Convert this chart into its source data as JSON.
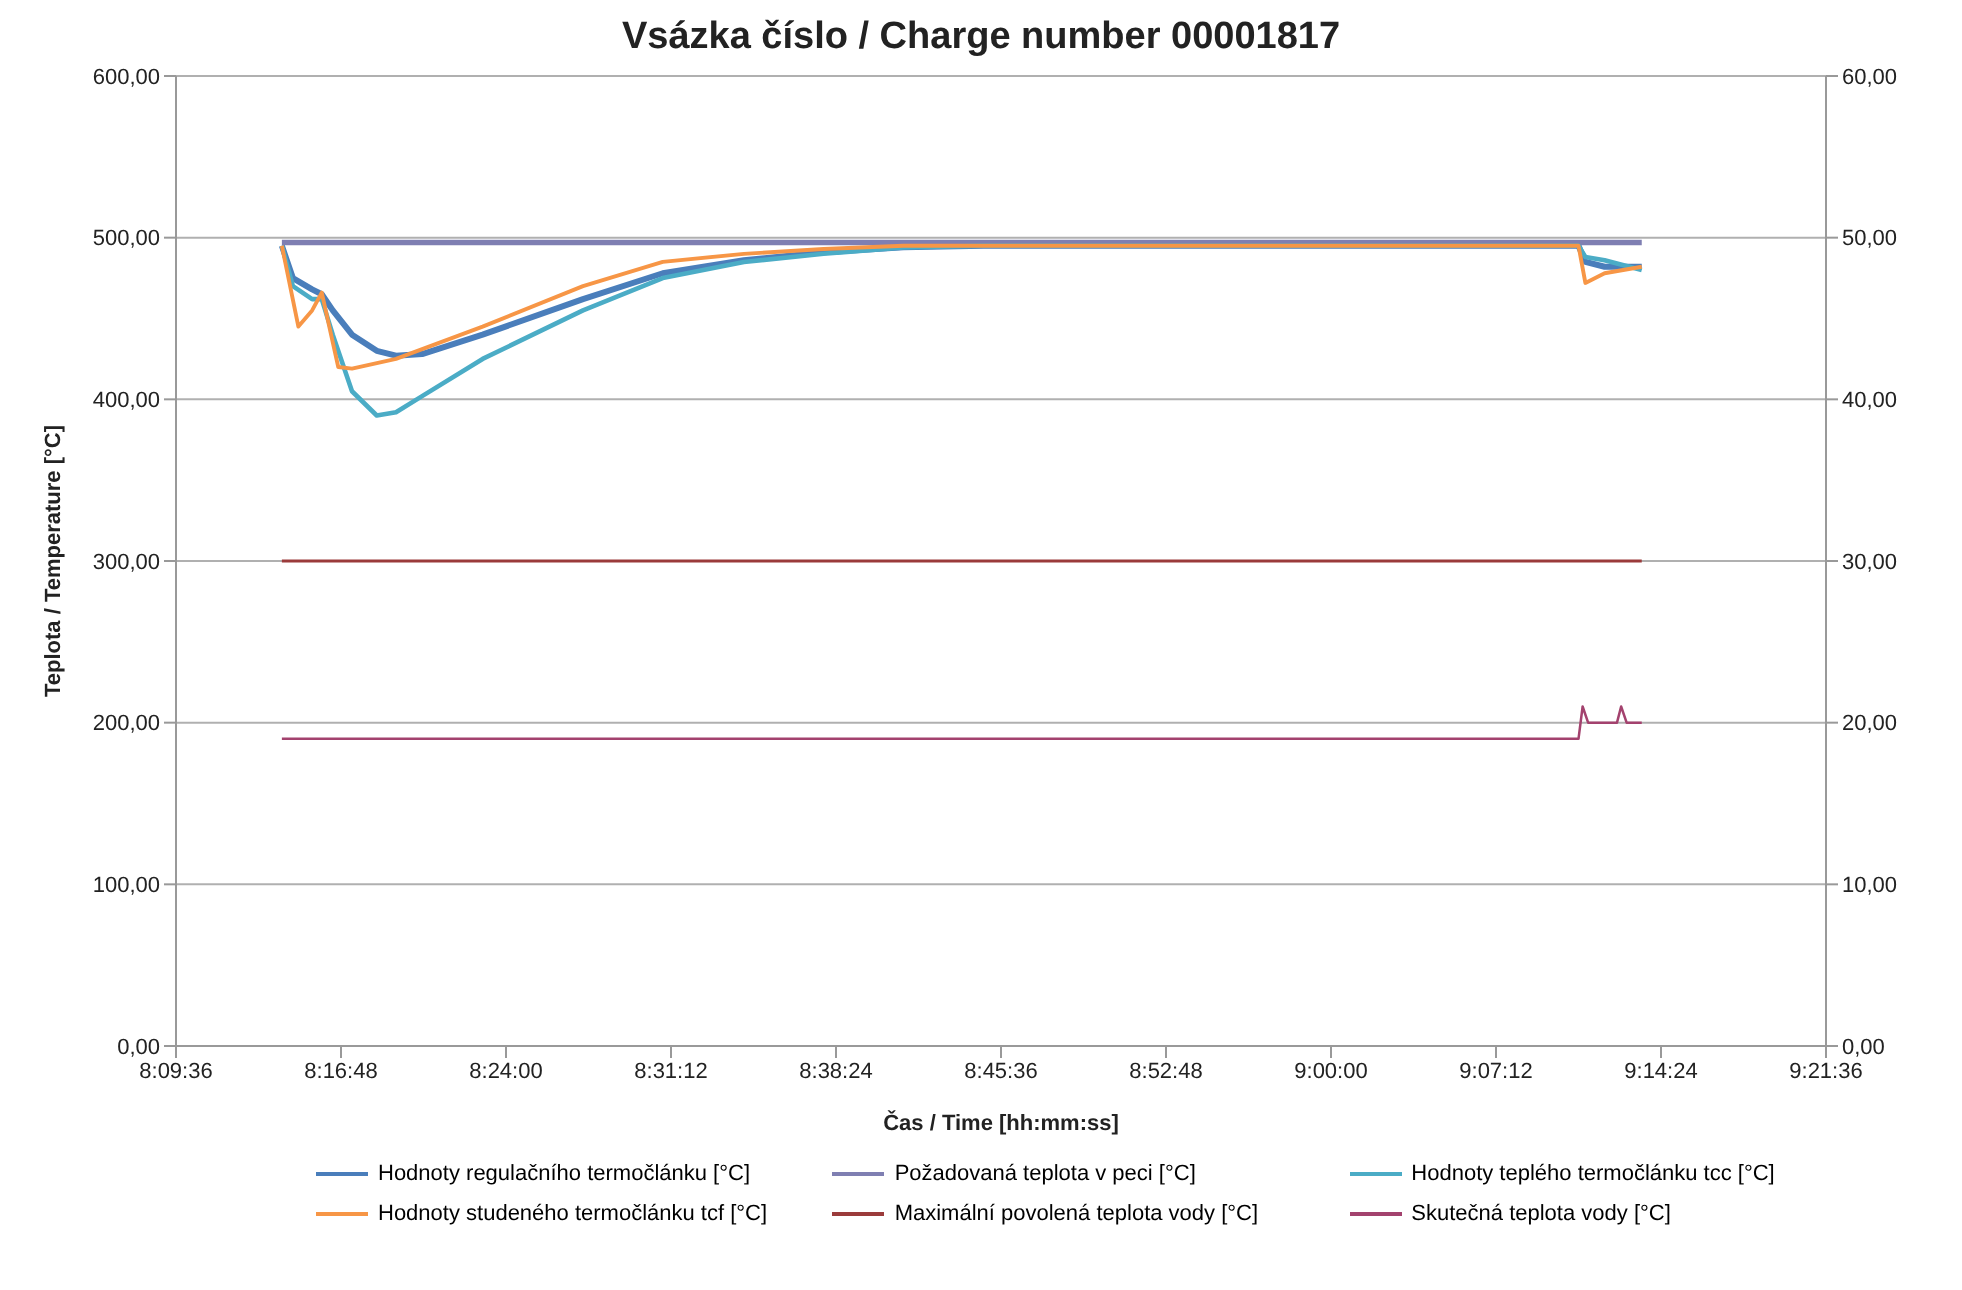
{
  "chart_data": {
    "type": "line",
    "title": "Vsázka číslo / Charge number 00001817",
    "xlabel": "Čas / Time [hh:mm:ss]",
    "ylabel": "Teplota / Temperature [°C]",
    "xlim": [
      8.16,
      9.36
    ],
    "xticks": [
      {
        "value": 8.16,
        "label": "8:09:36"
      },
      {
        "value": 8.28,
        "label": "8:16:48"
      },
      {
        "value": 8.4,
        "label": "8:24:00"
      },
      {
        "value": 8.52,
        "label": "8:31:12"
      },
      {
        "value": 8.64,
        "label": "8:38:24"
      },
      {
        "value": 8.76,
        "label": "8:45:36"
      },
      {
        "value": 8.88,
        "label": "8:52:48"
      },
      {
        "value": 9.0,
        "label": "9:00:00"
      },
      {
        "value": 9.12,
        "label": "9:07:12"
      },
      {
        "value": 9.24,
        "label": "9:14:24"
      },
      {
        "value": 9.36,
        "label": "9:21:36"
      }
    ],
    "ylim": [
      0,
      600
    ],
    "yticks": [
      {
        "value": 0,
        "label": "0,00"
      },
      {
        "value": 100,
        "label": "100,00"
      },
      {
        "value": 200,
        "label": "200,00"
      },
      {
        "value": 300,
        "label": "300,00"
      },
      {
        "value": 400,
        "label": "400,00"
      },
      {
        "value": 500,
        "label": "500,00"
      },
      {
        "value": 600,
        "label": "600,00"
      }
    ],
    "y2lim": [
      0,
      60
    ],
    "y2ticks": [
      {
        "value": 0,
        "label": "0,00"
      },
      {
        "value": 10,
        "label": "10,00"
      },
      {
        "value": 20,
        "label": "20,00"
      },
      {
        "value": 30,
        "label": "30,00"
      },
      {
        "value": 40,
        "label": "40,00"
      },
      {
        "value": 50,
        "label": "50,00"
      },
      {
        "value": 60,
        "label": "60,00"
      }
    ],
    "grid": "y",
    "legend": "bottom",
    "marker": "none",
    "line_style": "solid",
    "series": [
      {
        "name": "Hodnoty regulačního termočlánku [°C]",
        "color": "#4a7ebb",
        "x": [
          8.237,
          8.245,
          8.259,
          8.266,
          8.274,
          8.288,
          8.306,
          8.32,
          8.339,
          8.383,
          8.456,
          8.514,
          8.573,
          8.631,
          8.689,
          8.747,
          9.18,
          9.185,
          9.199,
          9.226
        ],
        "values": [
          495,
          475,
          468,
          465,
          455,
          440,
          430,
          427,
          428,
          440,
          462,
          478,
          486,
          491,
          494,
          495,
          495,
          485,
          482,
          482
        ]
      },
      {
        "name": "Požadovaná teplota v peci [°C]",
        "color": "#7f7fb2",
        "x": [
          8.237,
          9.226
        ],
        "values": [
          497,
          497
        ]
      },
      {
        "name": "Hodnoty teplého termočlánku tcc [°C]",
        "color": "#4bacc6",
        "x": [
          8.237,
          8.245,
          8.259,
          8.266,
          8.274,
          8.288,
          8.306,
          8.32,
          8.339,
          8.383,
          8.456,
          8.514,
          8.573,
          8.631,
          8.689,
          8.747,
          9.18,
          9.185,
          9.199,
          9.226
        ],
        "values": [
          495,
          470,
          462,
          462,
          440,
          405,
          390,
          392,
          402,
          425,
          455,
          475,
          485,
          490,
          494,
          495,
          495,
          488,
          486,
          480
        ]
      },
      {
        "name": "Hodnoty studeného termočlánku tcf [°C]",
        "color": "#f79646",
        "x": [
          8.237,
          8.249,
          8.259,
          8.266,
          8.278,
          8.288,
          8.32,
          8.383,
          8.456,
          8.514,
          8.573,
          8.631,
          8.689,
          9.18,
          9.185,
          9.199,
          9.226
        ],
        "values": [
          495,
          445,
          455,
          466,
          420,
          419,
          425,
          445,
          470,
          485,
          490,
          493,
          495,
          495,
          472,
          478,
          482
        ]
      },
      {
        "name": "Maximální povolená teplota vody [°C]",
        "color": "#9b3b3b",
        "axis": "y2",
        "x": [
          8.237,
          9.226
        ],
        "values": [
          30,
          30
        ]
      },
      {
        "name": "Skutečná teplota vody [°C]",
        "color": "#a3426e",
        "axis": "y2",
        "x": [
          8.237,
          9.18,
          9.183,
          9.187,
          9.208,
          9.211,
          9.215,
          9.226
        ],
        "values": [
          19,
          19,
          21,
          20,
          20,
          21,
          20,
          20
        ]
      }
    ]
  }
}
